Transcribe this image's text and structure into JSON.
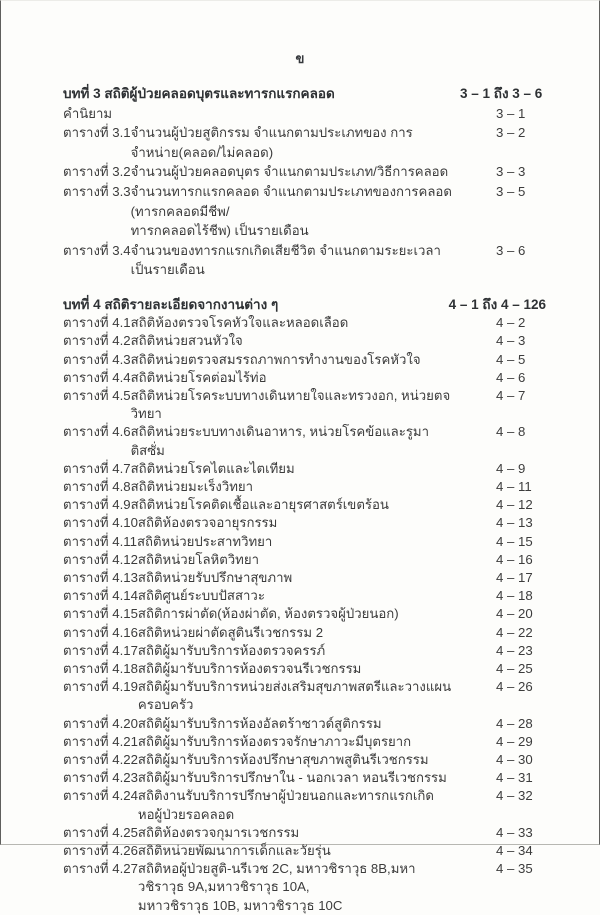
{
  "page": {
    "header_label": "ข"
  },
  "toc": {
    "sections": [
      {
        "title": "บทที่ 3 สถิติผู้ป่วยคลอดบุตรและทารกแรกคลอด",
        "page_range": "3 – 1 ถึง 3 – 6",
        "entries": [
          {
            "label": "คำนิยาม",
            "title": "",
            "page": "3 – 1"
          },
          {
            "label": "ตารางที่ 3.1",
            "title": "จำนวนผู้ป่วยสูติกรรม จำแนกตามประเภทของ การจำหน่าย(คลอด/ไม่คลอด)",
            "page": "3 – 2"
          },
          {
            "label": "ตารางที่ 3.2",
            "title": "จำนวนผู้ป่วยคลอดบุตร จำแนกตามประเภท/วิธีการคลอด",
            "page": "3 – 3"
          },
          {
            "label": "ตารางที่ 3.3",
            "title": "จำนวนทารกแรกคลอด จำแนกตามประเภทของการคลอด (ทารกคลอดมีชีพ/",
            "title_line2": "ทารกคลอดไร้ชีพ) เป็นรายเดือน",
            "page": "3 – 5"
          },
          {
            "label": "ตารางที่ 3.4",
            "title": "จำนวนของทารกแรกเกิดเสียชีวิต จำแนกตามระยะเวลา เป็นรายเดือน",
            "page": "3 – 6"
          }
        ]
      },
      {
        "title": "บทที่ 4 สถิติรายละเอียดจากงานต่าง ๆ",
        "page_range": "4 – 1 ถึง 4 – 126",
        "entries": [
          {
            "label": "ตารางที่ 4.1",
            "title": "สถิติห้องตรวจโรคหัวใจและหลอดเลือด",
            "page": "4 – 2"
          },
          {
            "label": "ตารางที่ 4.2",
            "title": "สถิติหน่วยสวนหัวใจ",
            "page": "4 – 3"
          },
          {
            "label": "ตารางที่ 4.3",
            "title": "สถิติหน่วยตรวจสมรรถภาพการทำงานของโรคหัวใจ",
            "page": "4 – 5"
          },
          {
            "label": "ตารางที่ 4.4",
            "title": "สถิติหน่วยโรคต่อมไร้ท่อ",
            "page": "4 – 6"
          },
          {
            "label": "ตารางที่ 4.5",
            "title": "สถิติหน่วยโรคระบบทางเดินหายใจและทรวงอก, หน่วยตจวิทยา",
            "page": "4 – 7"
          },
          {
            "label": "ตารางที่ 4.6",
            "title": "สถิติหน่วยระบบทางเดินอาหาร, หน่วยโรคข้อและรูมาติสซั่ม",
            "page": "4 – 8"
          },
          {
            "label": "ตารางที่ 4.7",
            "title": "สถิติหน่วยโรคไตและไตเทียม",
            "page": "4 – 9"
          },
          {
            "label": "ตารางที่ 4.8",
            "title": "สถิติหน่วยมะเร็งวิทยา",
            "page": "4 – 11"
          },
          {
            "label": "ตารางที่ 4.9",
            "title": "สถิติหน่วยโรคติดเชื้อและอายุรศาสตร์เขตร้อน",
            "page": "4 – 12"
          },
          {
            "label": "ตารางที่ 4.10",
            "title": "สถิติห้องตรวจอายุรกรรม",
            "page": "4 – 13"
          },
          {
            "label": "ตารางที่ 4.11",
            "title": "สถิติหน่วยประสาทวิทยา",
            "page": "4 – 15"
          },
          {
            "label": "ตารางที่ 4.12",
            "title": "สถิติหน่วยโลหิตวิทยา",
            "page": "4 – 16"
          },
          {
            "label": "ตารางที่ 4.13",
            "title": "สถิติหน่วยรับปรึกษาสุขภาพ",
            "page": "4 – 17"
          },
          {
            "label": "ตารางที่ 4.14",
            "title": "สถิติศูนย์ระบบปัสสาวะ",
            "page": "4 – 18"
          },
          {
            "label": "ตารางที่ 4.15",
            "title": "สถิติการผ่าตัด(ห้องผ่าตัด, ห้องตรวจผู้ป่วยนอก)",
            "page": "4 – 20"
          },
          {
            "label": "ตารางที่ 4.16",
            "title": "สถิติหน่วยผ่าตัดสูตินรีเวชกรรม 2",
            "page": "4 – 22"
          },
          {
            "label": "ตารางที่ 4.17",
            "title": "สถิติผู้มารับบริการห้องตรวจครรภ์",
            "page": "4 – 23"
          },
          {
            "label": "ตารางที่ 4.18",
            "title": "สถิติผู้มารับบริการห้องตรวจนรีเวชกรรม",
            "page": "4 – 25"
          },
          {
            "label": "ตารางที่ 4.19",
            "title": "สถิติผู้มารับบริการหน่วยส่งเสริมสุขภาพสตรีและวางแผนครอบครัว",
            "page": "4 – 26"
          },
          {
            "label": "ตารางที่ 4.20",
            "title": "สถิติผู้มารับบริการห้องอัลตร้าซาวด์สูติกรรม",
            "page": "4 – 28"
          },
          {
            "label": "ตารางที่ 4.21",
            "title": "สถิติผู้มารับบริการห้องตรวจรักษาภาวะมีบุตรยาก",
            "page": "4 – 29"
          },
          {
            "label": "ตารางที่ 4.22",
            "title": "สถิติผู้มารับบริการห้องปรึกษาสุขภาพสูตินรีเวชกรรม",
            "page": "4 – 30"
          },
          {
            "label": "ตารางที่ 4.23",
            "title": "สถิติผู้มารับบริการปรึกษาใน - นอกเวลา หอนรีเวชกรรม",
            "page": "4 – 31"
          },
          {
            "label": "ตารางที่ 4.24",
            "title": "สถิติงานรับบริการปรึกษาผู้ป่วยนอกและทารกแรกเกิด หอผู้ป่วยรอคลอด",
            "page": "4 – 32"
          },
          {
            "label": "ตารางที่ 4.25",
            "title": "สถิติห้องตรวจกุมารเวชกรรม",
            "page": "4 – 33"
          },
          {
            "label": "ตารางที่ 4.26",
            "title": "สถิติหน่วยพัฒนาการเด็กและวัยรุ่น",
            "page": "4 – 34"
          },
          {
            "label": "ตารางที่ 4.27",
            "title": "สถิติหอผู้ป่วยสูติ-นรีเวช 2C, มหาวชิราวุธ 8B,มหาวชิราวุธ 9A,มหาวชิราวุธ 10A,",
            "title_line2": "มหาวชิราวุธ 10B, มหาวชิราวุธ 10C",
            "page": "4 – 35"
          }
        ]
      }
    ]
  }
}
